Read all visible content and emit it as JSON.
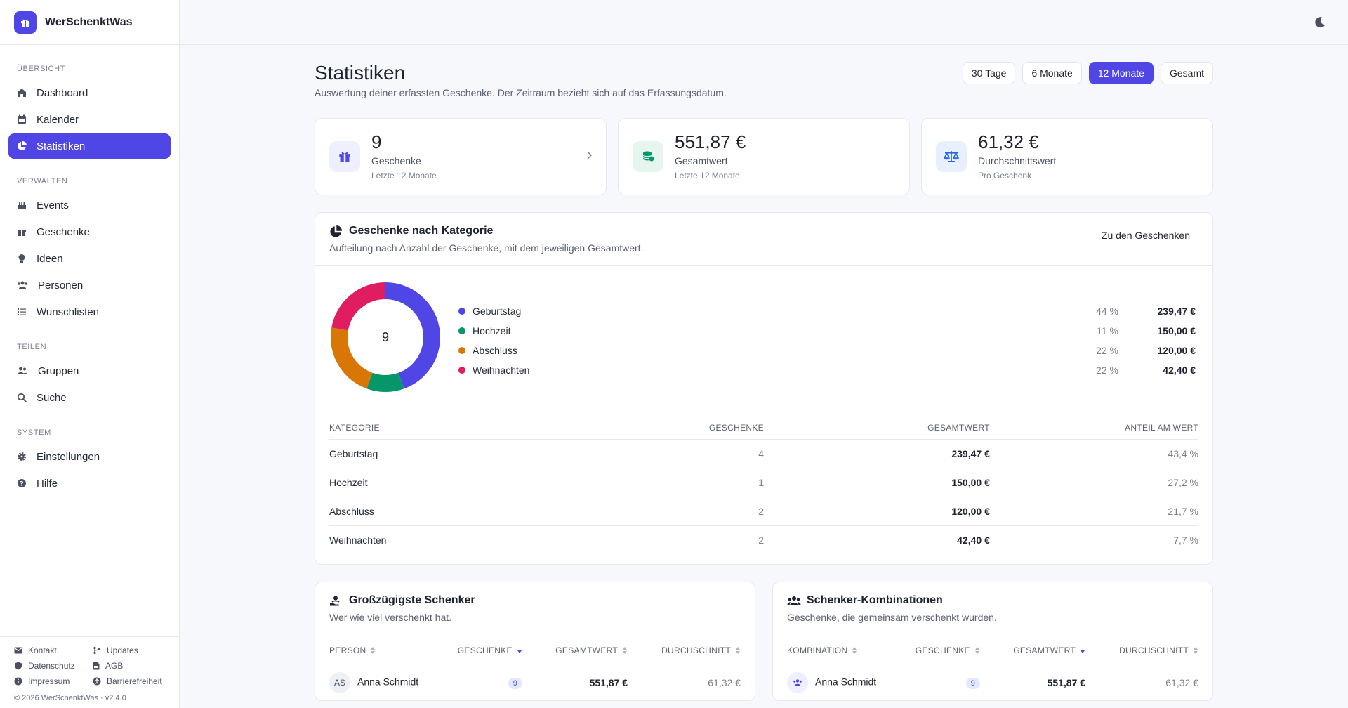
{
  "brand": {
    "name": "WerSchenktWas"
  },
  "sidebar": {
    "sections": [
      {
        "label": "Übersicht",
        "items": [
          {
            "label": "Dashboard",
            "icon": "home-icon"
          },
          {
            "label": "Kalender",
            "icon": "calendar-icon"
          },
          {
            "label": "Statistiken",
            "icon": "chart-pie-icon",
            "active": true
          }
        ]
      },
      {
        "label": "Verwalten",
        "items": [
          {
            "label": "Events",
            "icon": "cake-icon"
          },
          {
            "label": "Geschenke",
            "icon": "gift-icon"
          },
          {
            "label": "Ideen",
            "icon": "lightbulb-icon"
          },
          {
            "label": "Personen",
            "icon": "users-icon"
          },
          {
            "label": "Wunschlisten",
            "icon": "list-icon"
          }
        ]
      },
      {
        "label": "Teilen",
        "items": [
          {
            "label": "Gruppen",
            "icon": "group-icon"
          },
          {
            "label": "Suche",
            "icon": "search-icon"
          }
        ]
      },
      {
        "label": "System",
        "items": [
          {
            "label": "Einstellungen",
            "icon": "gear-icon"
          },
          {
            "label": "Hilfe",
            "icon": "help-icon"
          }
        ]
      }
    ],
    "footer_links": [
      "Kontakt",
      "Updates",
      "Datenschutz",
      "AGB",
      "Impressum",
      "Barrierefreiheit"
    ],
    "copyright": "© 2026 WerSchenktWas · v2.4.0"
  },
  "page": {
    "title": "Statistiken",
    "subtitle": "Auswertung deiner erfassten Geschenke. Der Zeitraum bezieht sich auf das Erfassungsdatum.",
    "ranges": [
      "30 Tage",
      "6 Monate",
      "12 Monate",
      "Gesamt"
    ],
    "active_range": "12 Monate"
  },
  "cards": [
    {
      "value": "9",
      "label": "Geschenke",
      "hint": "Letzte 12 Monate",
      "icon": "gift-icon",
      "color": "#4f46e5"
    },
    {
      "value": "551,87 €",
      "label": "Gesamtwert",
      "hint": "Letzte 12 Monate",
      "icon": "coins-icon",
      "color": "#059669"
    },
    {
      "value": "61,32 €",
      "label": "Durchschnittswert",
      "hint": "Pro Geschenk",
      "icon": "scale-icon",
      "color": "#2563eb"
    }
  ],
  "category_panel": {
    "title": "Geschenke nach Kategorie",
    "subtitle": "Aufteilung nach Anzahl der Geschenke, mit dem jeweiligen Gesamtwert.",
    "link": "Zu den Geschenken",
    "donut_center": "9",
    "legend": [
      {
        "name": "Geburtstag",
        "pct": "44 %",
        "value": "239,47 €",
        "color": "#4f46e5",
        "count": 4
      },
      {
        "name": "Hochzeit",
        "pct": "11 %",
        "value": "150,00 €",
        "color": "#059669",
        "count": 1
      },
      {
        "name": "Abschluss",
        "pct": "22 %",
        "value": "120,00 €",
        "color": "#d97706",
        "count": 2
      },
      {
        "name": "Weihnachten",
        "pct": "22 %",
        "value": "42,40 €",
        "color": "#e11d62",
        "count": 2
      }
    ],
    "table": {
      "headers": [
        "Kategorie",
        "Geschenke",
        "Gesamtwert",
        "Anteil am Wert"
      ],
      "rows": [
        [
          "Geburtstag",
          "4",
          "239,47 €",
          "43,4 %"
        ],
        [
          "Hochzeit",
          "1",
          "150,00 €",
          "27,2 %"
        ],
        [
          "Abschluss",
          "2",
          "120,00 €",
          "21,7 %"
        ],
        [
          "Weihnachten",
          "2",
          "42,40 €",
          "7,7 %"
        ]
      ]
    }
  },
  "givers_panel": {
    "title": "Großzügigste Schenker",
    "subtitle": "Wer wie viel verschenkt hat.",
    "headers": [
      "Person",
      "Geschenke",
      "Gesamtwert",
      "Durchschnitt"
    ],
    "rows": [
      {
        "initials": "AS",
        "name": "Anna Schmidt",
        "count": "9",
        "total": "551,87 €",
        "avg": "61,32 €"
      }
    ]
  },
  "combos_panel": {
    "title": "Schenker-Kombinationen",
    "subtitle": "Geschenke, die gemeinsam verschenkt wurden.",
    "headers": [
      "Kombination",
      "Geschenke",
      "Gesamtwert",
      "Durchschnitt"
    ],
    "rows": [
      {
        "name": "Anna Schmidt",
        "count": "9",
        "total": "551,87 €",
        "avg": "61,32 €"
      }
    ]
  }
}
